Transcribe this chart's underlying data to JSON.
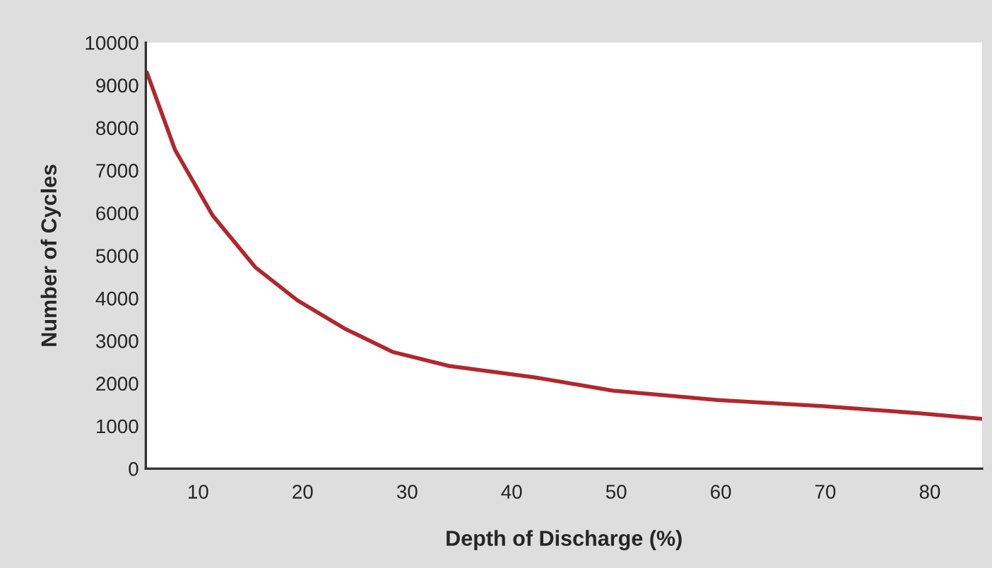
{
  "chart_data": {
    "type": "line",
    "xlabel": "Depth of Discharge (%)",
    "ylabel": "Number of Cycles",
    "x": [
      5.1,
      7.8,
      11.4,
      15.5,
      19.5,
      24,
      28.6,
      34,
      42,
      49.7,
      59.7,
      69.6,
      79,
      84.9
    ],
    "series": [
      {
        "color": "#b0282e",
        "values": [
          9300,
          7480,
          5940,
          4720,
          3950,
          3290,
          2740,
          2410,
          2150,
          1830,
          1610,
          1470,
          1300,
          1170
        ]
      }
    ],
    "xlim": [
      5,
      85
    ],
    "xticks": [
      10,
      20,
      30,
      40,
      50,
      60,
      70,
      80
    ],
    "ylim": [
      0,
      10000
    ],
    "yticks": [
      0,
      1000,
      2000,
      3000,
      4000,
      5000,
      6000,
      7000,
      8000,
      9000,
      10000
    ],
    "grid": false,
    "legend": false,
    "marker": "none",
    "line_style": "solid"
  }
}
